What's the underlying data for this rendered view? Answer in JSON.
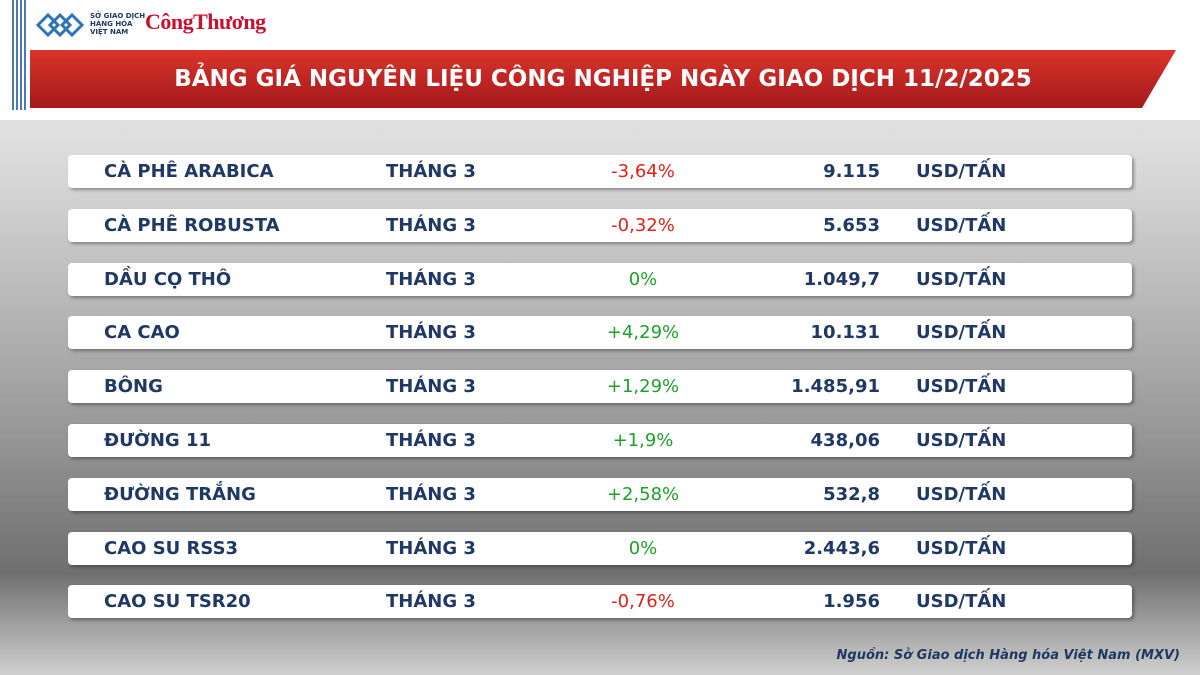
{
  "header": {
    "logo_org": [
      "SỞ GIAO DỊCH",
      "HÀNG HÓA",
      "VIỆT NAM"
    ],
    "logo_brand": "CôngThương",
    "title": "BẢNG GIÁ NGUYÊN LIỆU CÔNG NGHIỆP NGÀY GIAO DỊCH 11/2/2025"
  },
  "table": {
    "rows": [
      [
        "CÀ PHÊ ARABICA",
        "THÁNG 3",
        "-3,64%",
        "9.115",
        "USD/TẤN"
      ],
      [
        "CÀ PHÊ ROBUSTA",
        "THÁNG 3",
        "-0,32%",
        "5.653",
        "USD/TẤN"
      ],
      [
        "DẦU CỌ THÔ",
        "THÁNG 3",
        "0%",
        "1.049,7",
        "USD/TẤN"
      ],
      [
        "CA CAO",
        "THÁNG 3",
        "+4,29%",
        "10.131",
        "USD/TẤN"
      ],
      [
        "BÔNG",
        "THÁNG 3",
        "+1,29%",
        "1.485,91",
        "USD/TẤN"
      ],
      [
        "ĐƯỜNG 11",
        "THÁNG 3",
        "+1,9%",
        "438,06",
        "USD/TẤN"
      ],
      [
        "ĐƯỜNG TRẮNG",
        "THÁNG 3",
        "+2,58%",
        "532,8",
        "USD/TẤN"
      ],
      [
        "CAO SU RSS3",
        "THÁNG 3",
        "0%",
        "2.443,6",
        "USD/TẤN"
      ],
      [
        "CAO SU TSR20",
        "THÁNG 3",
        "-0,76%",
        "1.956",
        "USD/TẤN"
      ]
    ]
  },
  "source": "Nguồn: Sở Giao dịch Hàng hóa Việt Nam (MXV)"
}
